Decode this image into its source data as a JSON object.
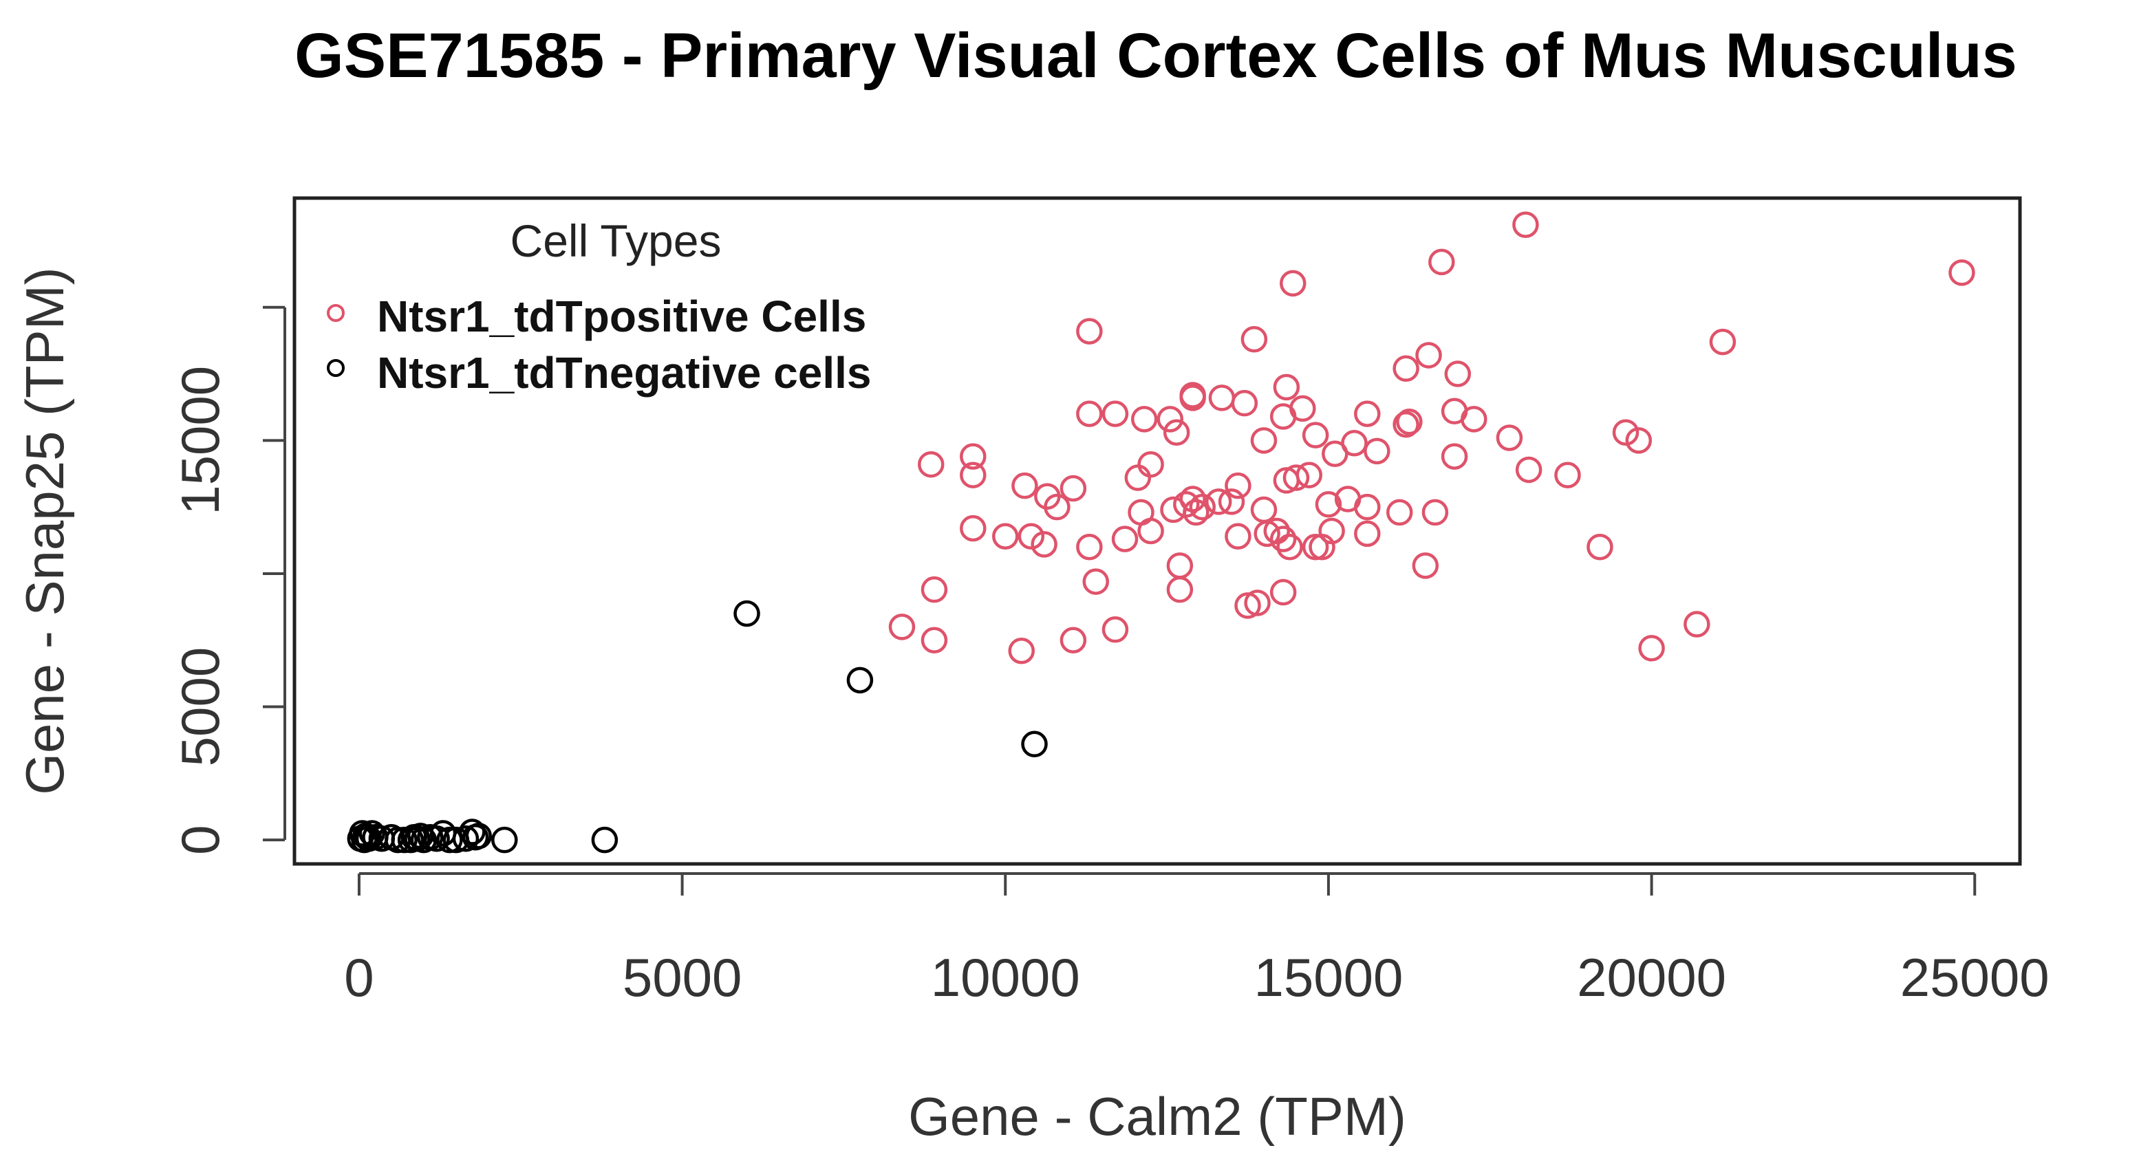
{
  "chart_data": {
    "type": "scatter",
    "title": "GSE71585 - Primary Visual Cortex Cells of Mus Musculus",
    "xlabel": "Gene - Calm2 (TPM)",
    "ylabel": "Gene - Snap25 (TPM)",
    "xlim": [
      -1000,
      25700
    ],
    "ylim": [
      -900,
      24100
    ],
    "x_ticks": [
      0,
      5000,
      10000,
      15000,
      20000,
      25000
    ],
    "y_ticks": [
      0,
      5000,
      10000,
      15000,
      20000
    ],
    "y_tick_labels": [
      "0",
      "5000",
      "",
      "15000",
      ""
    ],
    "grid": false,
    "legend": {
      "title": "Cell Types",
      "position": "top-left",
      "entries": [
        {
          "label": "Ntsr1_tdTpositive Cells",
          "color": "#DF536B"
        },
        {
          "label": "Ntsr1_tdTnegative cells",
          "color": "#000000"
        }
      ]
    },
    "series": [
      {
        "name": "Ntsr1_tdTpositive Cells",
        "color": "#DF536B",
        "points": [
          [
            18050,
            23100
          ],
          [
            16750,
            21700
          ],
          [
            24800,
            21300
          ],
          [
            14450,
            20900
          ],
          [
            11300,
            19100
          ],
          [
            13850,
            18800
          ],
          [
            21100,
            18700
          ],
          [
            16550,
            18200
          ],
          [
            16200,
            17700
          ],
          [
            17000,
            17500
          ],
          [
            14350,
            17000
          ],
          [
            12900,
            16700
          ],
          [
            13350,
            16600
          ],
          [
            13700,
            16400
          ],
          [
            14600,
            16200
          ],
          [
            11300,
            16000
          ],
          [
            11700,
            16000
          ],
          [
            14300,
            15900
          ],
          [
            12550,
            15800
          ],
          [
            15600,
            16000
          ],
          [
            16950,
            16100
          ],
          [
            17250,
            15800
          ],
          [
            16200,
            15600
          ],
          [
            16250,
            15700
          ],
          [
            12150,
            15800
          ],
          [
            12650,
            15300
          ],
          [
            12900,
            16600
          ],
          [
            14000,
            15000
          ],
          [
            14800,
            15200
          ],
          [
            15400,
            14900
          ],
          [
            17800,
            15100
          ],
          [
            19600,
            15300
          ],
          [
            19800,
            15000
          ],
          [
            15100,
            14500
          ],
          [
            15750,
            14600
          ],
          [
            16950,
            14400
          ],
          [
            9500,
            14400
          ],
          [
            9500,
            13700
          ],
          [
            8850,
            14100
          ],
          [
            12250,
            14100
          ],
          [
            12050,
            13600
          ],
          [
            10300,
            13300
          ],
          [
            11050,
            13200
          ],
          [
            13600,
            13300
          ],
          [
            14350,
            13500
          ],
          [
            14500,
            13600
          ],
          [
            14700,
            13700
          ],
          [
            18100,
            13900
          ],
          [
            18700,
            13700
          ],
          [
            10650,
            12900
          ],
          [
            10800,
            12500
          ],
          [
            12800,
            12600
          ],
          [
            12900,
            12800
          ],
          [
            13050,
            12500
          ],
          [
            13300,
            12700
          ],
          [
            13500,
            12700
          ],
          [
            12600,
            12400
          ],
          [
            12950,
            12300
          ],
          [
            14000,
            12400
          ],
          [
            15000,
            12600
          ],
          [
            15300,
            12800
          ],
          [
            15600,
            12500
          ],
          [
            16100,
            12300
          ],
          [
            16650,
            12300
          ],
          [
            9500,
            11700
          ],
          [
            10000,
            11400
          ],
          [
            10400,
            11400
          ],
          [
            10600,
            11100
          ],
          [
            11850,
            11300
          ],
          [
            12250,
            11600
          ],
          [
            12100,
            12300
          ],
          [
            13600,
            11400
          ],
          [
            14050,
            11500
          ],
          [
            14200,
            11600
          ],
          [
            14300,
            11300
          ],
          [
            14400,
            11000
          ],
          [
            14800,
            11000
          ],
          [
            14900,
            11000
          ],
          [
            15050,
            11600
          ],
          [
            15600,
            11500
          ],
          [
            11300,
            11000
          ],
          [
            19200,
            11000
          ],
          [
            12700,
            10300
          ],
          [
            16500,
            10300
          ],
          [
            11400,
            9700
          ],
          [
            8900,
            9400
          ],
          [
            12700,
            9400
          ],
          [
            14300,
            9300
          ],
          [
            13750,
            8800
          ],
          [
            13900,
            8900
          ],
          [
            8400,
            8000
          ],
          [
            11700,
            7900
          ],
          [
            8900,
            7500
          ],
          [
            11050,
            7500
          ],
          [
            10250,
            7100
          ],
          [
            20700,
            8100
          ],
          [
            20000,
            7200
          ]
        ]
      },
      {
        "name": "Ntsr1_tdTnegative cells",
        "color": "#000000",
        "points": [
          [
            6000,
            8500
          ],
          [
            7750,
            6000
          ],
          [
            10450,
            3600
          ],
          [
            3800,
            0
          ],
          [
            2250,
            0
          ],
          [
            1850,
            150
          ],
          [
            1750,
            300
          ],
          [
            1800,
            100
          ],
          [
            1650,
            50
          ],
          [
            1500,
            0
          ],
          [
            1300,
            250
          ],
          [
            1200,
            50
          ],
          [
            1100,
            100
          ],
          [
            1000,
            0
          ],
          [
            900,
            50
          ],
          [
            850,
            100
          ],
          [
            800,
            0
          ],
          [
            700,
            0
          ],
          [
            600,
            0
          ],
          [
            500,
            100
          ],
          [
            200,
            250
          ],
          [
            150,
            50
          ],
          [
            100,
            150
          ],
          [
            50,
            250
          ],
          [
            80,
            0
          ],
          [
            120,
            100
          ],
          [
            20,
            50
          ],
          [
            250,
            100
          ],
          [
            350,
            50
          ],
          [
            1400,
            0
          ],
          [
            950,
            150
          ]
        ]
      }
    ]
  }
}
